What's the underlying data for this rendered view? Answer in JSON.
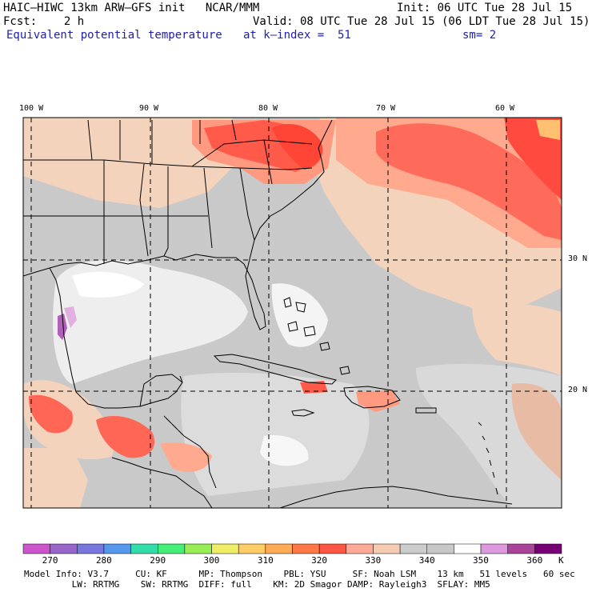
{
  "header": {
    "model_line": "HAIC–HIWC 13km ARW–GFS init   NCAR/MMM",
    "init_line": "Init: 06 UTC Tue 28 Jul 15",
    "fcst_line": "Fcst:    2 h",
    "valid_line": "Valid: 08 UTC Tue 28 Jul 15 (06 LDT Tue 28 Jul 15)",
    "field_name": "Equivalent potential temperature",
    "level_text": "at k–index =  51",
    "smooth_text": "sm= 2"
  },
  "map": {
    "lon_labels": [
      "100 W",
      "90 W",
      "80 W",
      "70 W",
      "60 W"
    ],
    "lat_labels": [
      "30 N",
      "20 N"
    ]
  },
  "colorbar": {
    "unit": "K",
    "tick_labels": [
      "270",
      "280",
      "290",
      "300",
      "310",
      "320",
      "330",
      "340",
      "350",
      "360"
    ],
    "colors": [
      "#cc55cc",
      "#9966cc",
      "#7777dd",
      "#5599ee",
      "#33ddaa",
      "#44ee77",
      "#99ee55",
      "#eeee66",
      "#ffcc66",
      "#ffaa55",
      "#ff7744",
      "#ff5544",
      "#ffaa99",
      "#f5ccb0",
      "#cccccc",
      "#c8c8c8",
      "#ffffff",
      "#dd99dd",
      "#aa4499",
      "#770077"
    ]
  },
  "footer": {
    "line1": "Model Info: V3.7     CU: KF      MP: Thompson    PBL: YSU     SF: Noah LSM    13 km   51 levels   60 sec",
    "line2": "         LW: RRTMG    SW: RRTMG  DIFF: full    KM: 2D Smagor DAMP: Rayleigh3  SFLAY: MM5"
  }
}
